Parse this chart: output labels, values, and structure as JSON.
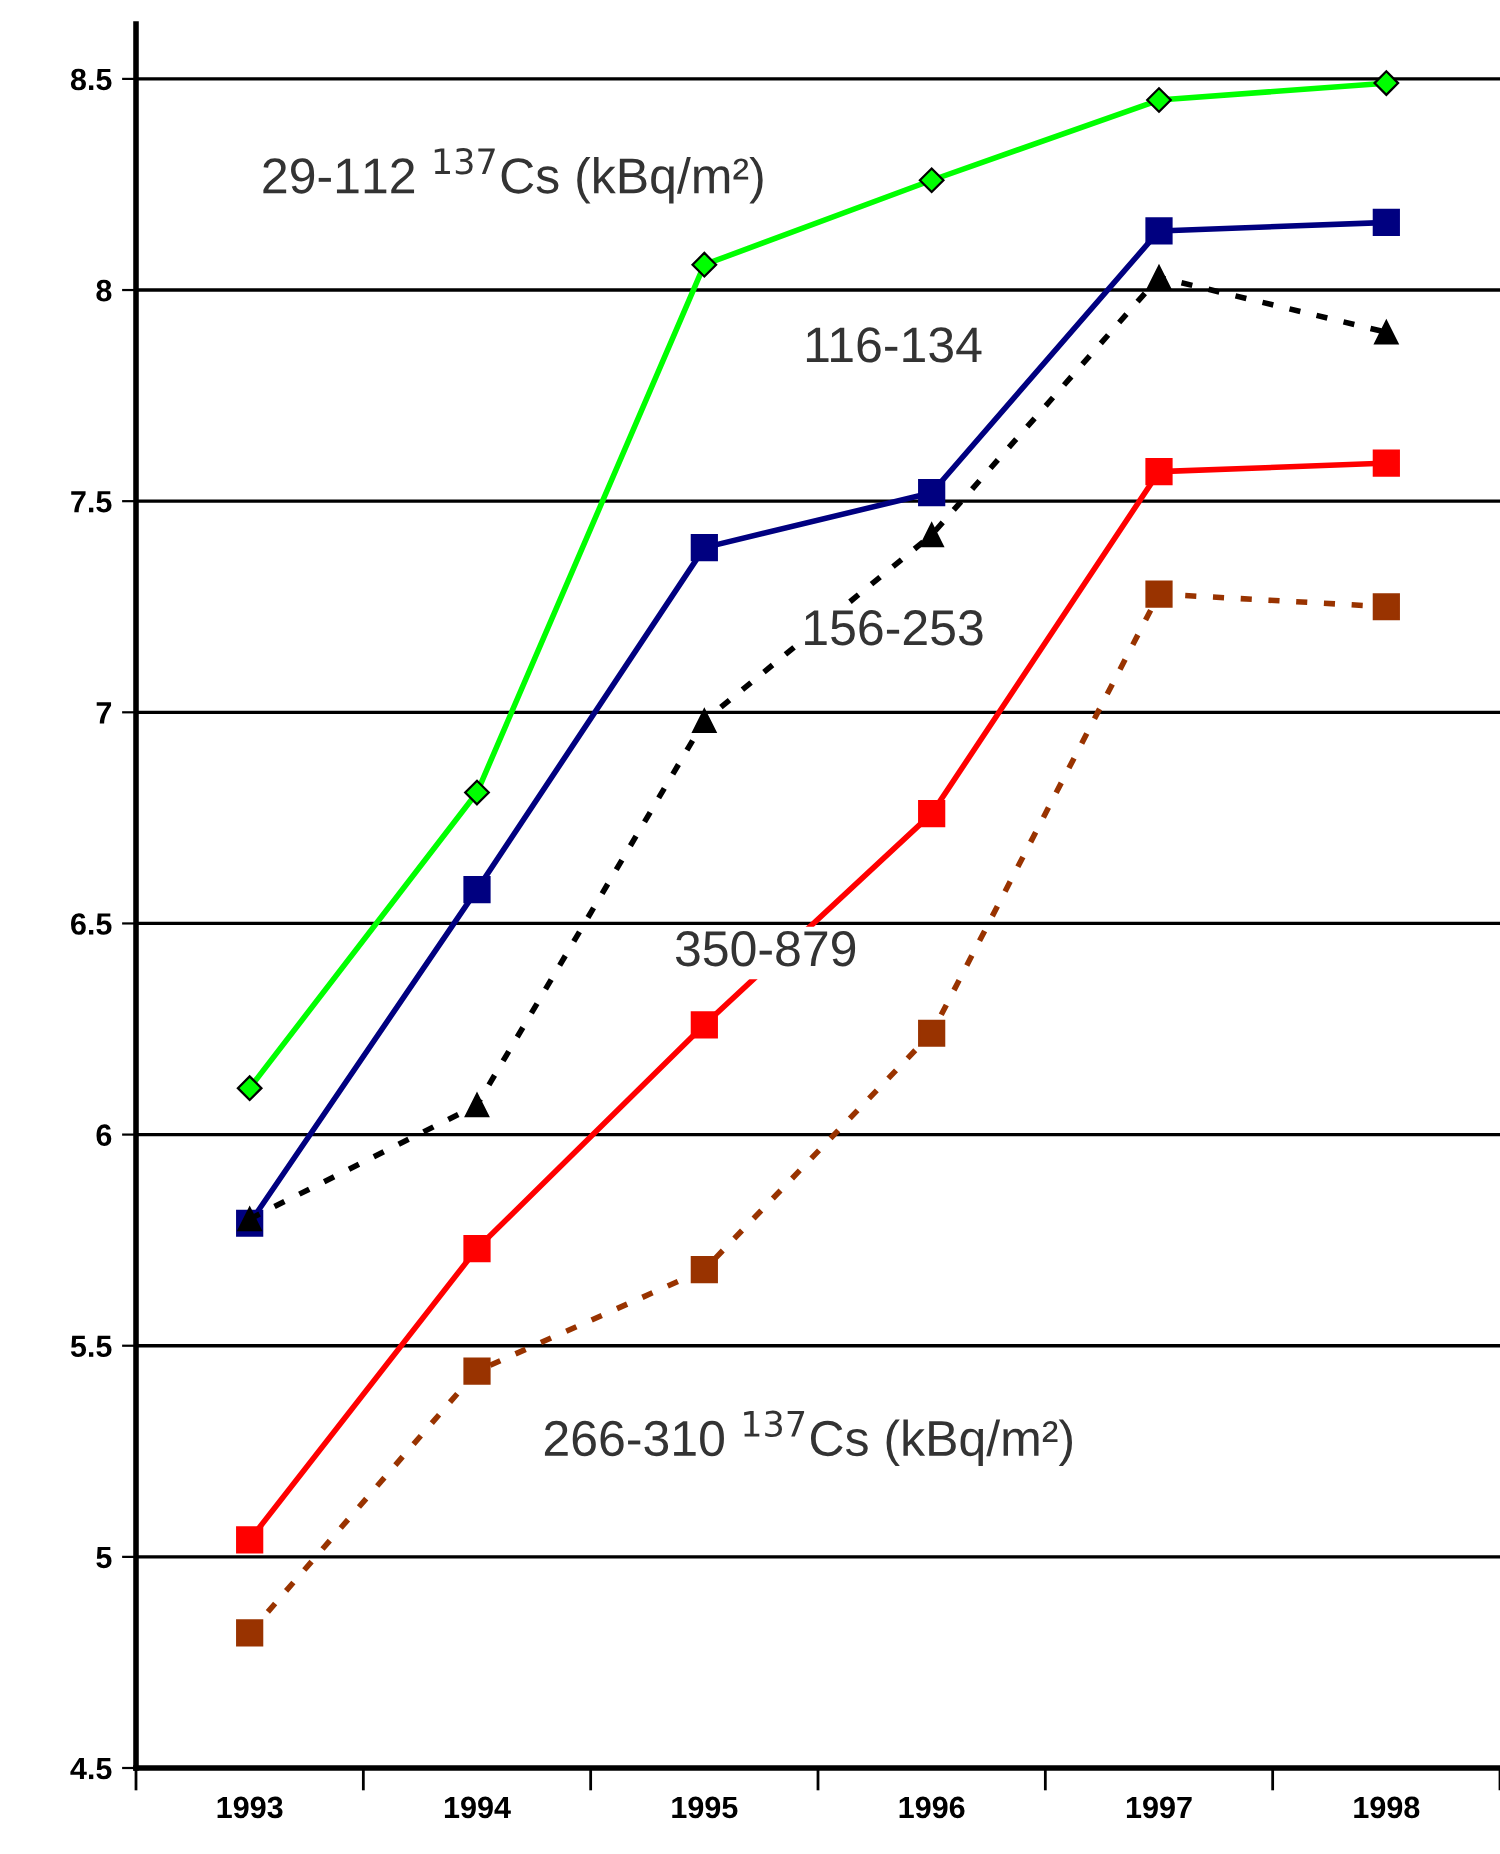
{
  "chart_data": {
    "type": "line",
    "categories": [
      "1993",
      "1994",
      "1995",
      "1996",
      "1997",
      "1998"
    ],
    "series": [
      {
        "name": "29-112 $^{137}$Cs (kBq/m²)",
        "color": "#00ff00",
        "marker": "diamond",
        "line_style": "solid",
        "values": [
          6.11,
          6.81,
          8.06,
          8.26,
          8.45,
          8.49
        ]
      },
      {
        "name": "116-134",
        "color": "#000080",
        "marker": "square",
        "line_style": "solid",
        "values": [
          5.79,
          6.58,
          7.39,
          7.52,
          8.14,
          8.16
        ]
      },
      {
        "name": "156-253",
        "color": "#000000",
        "marker": "triangle",
        "line_style": "dotted",
        "values": [
          5.8,
          6.07,
          6.98,
          7.42,
          8.03,
          7.9
        ]
      },
      {
        "name": "350-879",
        "color": "#ff0000",
        "marker": "square",
        "line_style": "solid",
        "values": [
          5.04,
          5.73,
          6.26,
          6.76,
          7.57,
          7.59
        ]
      },
      {
        "name": "266-310 $^{137}$Cs (kBq/m²)",
        "color": "#993300",
        "marker": "square",
        "line_style": "dotted",
        "values": [
          4.82,
          5.44,
          5.68,
          6.24,
          7.28,
          7.25
        ]
      }
    ],
    "ylim": [
      4.5,
      8.63
    ],
    "yticks": [
      4.5,
      5,
      5.5,
      6,
      6.5,
      7,
      7.5,
      8,
      8.5
    ],
    "grid": "y",
    "legend": false
  }
}
